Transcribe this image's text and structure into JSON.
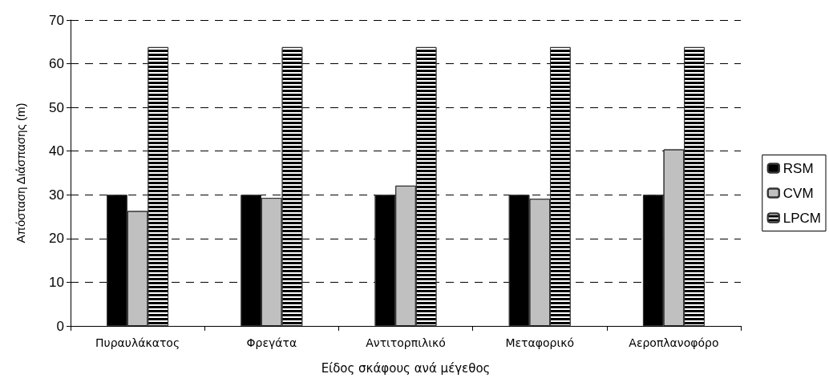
{
  "chart_data": {
    "type": "bar",
    "xlabel": "Είδος σκάφους ανά μέγεθος",
    "ylabel": "Απόσταση Διάσπασης (m)",
    "categories": [
      "Πυραυλάκατος",
      "Φρεγάτα",
      "Αντιτορπιλικό",
      "Μεταφορικό",
      "Αεροπλανοφόρο"
    ],
    "series": [
      {
        "name": "RSM",
        "color": "#000000",
        "values": [
          30,
          30,
          30,
          30,
          30
        ]
      },
      {
        "name": "CVM",
        "color": "#c0c0c0",
        "values": [
          26.3,
          29.3,
          32.1,
          29.1,
          40.4
        ]
      },
      {
        "name": "LPCM",
        "color": "#000000",
        "values": [
          63.8,
          63.8,
          63.8,
          63.8,
          63.8
        ]
      }
    ],
    "ylim": [
      0,
      70
    ],
    "yticks": [
      0,
      10,
      20,
      30,
      40,
      50,
      60,
      70
    ],
    "grid": "y",
    "legend": "right"
  }
}
